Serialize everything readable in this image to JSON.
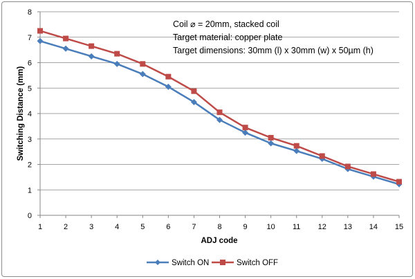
{
  "chart_data": {
    "type": "line",
    "title": "",
    "xlabel": "ADJ code",
    "ylabel": "Switching Distance (mm)",
    "x": [
      1,
      2,
      3,
      4,
      5,
      6,
      7,
      8,
      9,
      10,
      11,
      12,
      13,
      14,
      15
    ],
    "xlim": [
      1,
      15
    ],
    "ylim": [
      0,
      8
    ],
    "yticks": [
      0,
      1,
      2,
      3,
      4,
      5,
      6,
      7,
      8
    ],
    "grid": "horizontal",
    "legend_position": "bottom",
    "annotations": [
      "Coil ⌀ = 20mm, stacked coil",
      "Target material: copper plate",
      "Target dimensions: 30mm (l) x 30mm (w) x 50µm (h)"
    ],
    "series": [
      {
        "name": "Switch ON",
        "color": "#4a7ebb",
        "marker": "diamond",
        "values": [
          6.85,
          6.55,
          6.25,
          5.95,
          5.55,
          5.05,
          4.45,
          3.75,
          3.25,
          2.83,
          2.53,
          2.22,
          1.82,
          1.52,
          1.22
        ]
      },
      {
        "name": "Switch OFF",
        "color": "#be4b48",
        "marker": "square",
        "values": [
          7.25,
          6.95,
          6.65,
          6.35,
          5.95,
          5.45,
          4.88,
          4.05,
          3.45,
          3.05,
          2.73,
          2.33,
          1.92,
          1.62,
          1.32
        ]
      }
    ]
  }
}
